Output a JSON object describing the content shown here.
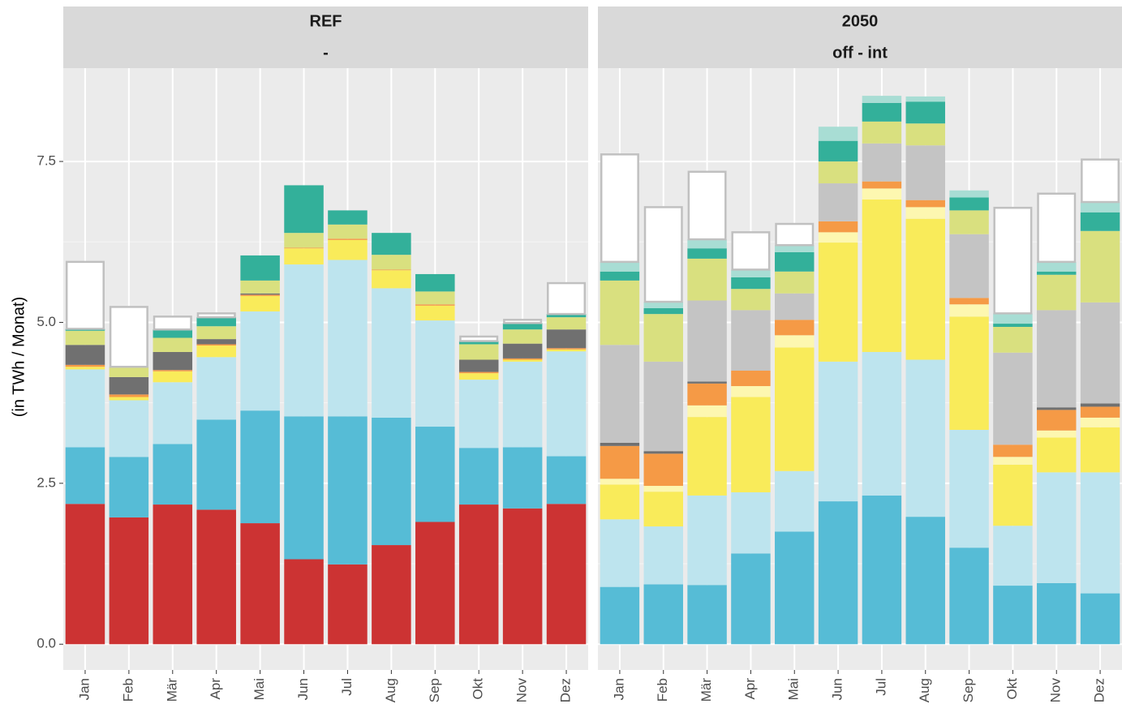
{
  "chart_data": [
    {
      "type": "bar",
      "stacked": true,
      "title": "REF",
      "subtitle": "-",
      "ylabel": "(in TWh / Monat)",
      "categories": [
        "Jan",
        "Feb",
        "Mär",
        "Apr",
        "Mai",
        "Jun",
        "Jul",
        "Aug",
        "Sep",
        "Okt",
        "Nov",
        "Dez"
      ],
      "ylim": [
        -0.4,
        8.95
      ],
      "yticks": [
        {
          "value": 0,
          "label": "0.0"
        },
        2.5,
        {
          "value": 5,
          "label": "5.0"
        },
        7.5
      ],
      "grid": true,
      "series": [
        {
          "color": "#cc3333",
          "values": [
            2.18,
            1.97,
            2.17,
            2.09,
            1.88,
            1.32,
            1.24,
            1.54,
            1.9,
            2.17,
            2.11,
            2.18
          ]
        },
        {
          "color": "#56bcd6",
          "values": [
            0.88,
            0.94,
            0.94,
            1.4,
            1.75,
            2.22,
            2.3,
            1.98,
            1.48,
            0.88,
            0.95,
            0.74
          ]
        },
        {
          "color": "#bde4ee",
          "values": [
            1.21,
            0.88,
            0.96,
            0.97,
            1.54,
            2.36,
            2.43,
            2.01,
            1.65,
            1.06,
            1.33,
            1.63
          ]
        },
        {
          "color": "#f9eb5a",
          "values": [
            0.04,
            0.05,
            0.17,
            0.18,
            0.24,
            0.25,
            0.31,
            0.28,
            0.23,
            0.1,
            0.03,
            0.03
          ]
        },
        {
          "color": "#f59a46",
          "values": [
            0.03,
            0.04,
            0.02,
            0.02,
            0.02,
            0.01,
            0.02,
            0.01,
            0.02,
            0.02,
            0.02,
            0.02
          ]
        },
        {
          "color": "#707070",
          "values": [
            0.31,
            0.27,
            0.28,
            0.08,
            0.02,
            0,
            0,
            0,
            0,
            0.19,
            0.23,
            0.29
          ]
        },
        {
          "color": "#d9e07f",
          "values": [
            0.22,
            0.16,
            0.22,
            0.2,
            0.2,
            0.23,
            0.22,
            0.23,
            0.2,
            0.24,
            0.22,
            0.19
          ]
        },
        {
          "color": "#33b09a",
          "values": [
            0.03,
            0,
            0.13,
            0.14,
            0.39,
            0.74,
            0.22,
            0.34,
            0.27,
            0.05,
            0.1,
            0.05
          ]
        },
        {
          "color": "#ffffff",
          "stroke": "#c0c0c0",
          "values": [
            1.04,
            0.93,
            0.2,
            0.06,
            0,
            0,
            0,
            0,
            0,
            0.07,
            0.05,
            0.48
          ]
        }
      ]
    },
    {
      "type": "bar",
      "stacked": true,
      "title": "2050",
      "subtitle": "off - int",
      "categories": [
        "Jan",
        "Feb",
        "Mär",
        "Apr",
        "Mai",
        "Jun",
        "Jul",
        "Aug",
        "Sep",
        "Okt",
        "Nov",
        "Dez"
      ],
      "ylim": [
        -0.4,
        8.95
      ],
      "yticks": [
        {
          "value": 0,
          "label": "0.0"
        },
        2.5,
        {
          "value": 5,
          "label": "5.0"
        },
        7.5
      ],
      "grid": true,
      "series": [
        {
          "color": "#56bcd6",
          "values": [
            0.89,
            0.93,
            0.92,
            1.41,
            1.75,
            2.22,
            2.31,
            1.98,
            1.5,
            0.91,
            0.95,
            0.79
          ]
        },
        {
          "color": "#bde4ee",
          "values": [
            1.05,
            0.9,
            1.39,
            0.95,
            0.94,
            2.17,
            2.23,
            2.44,
            1.83,
            0.93,
            1.72,
            1.88
          ]
        },
        {
          "color": "#f9eb5a",
          "values": [
            0.54,
            0.54,
            1.22,
            1.48,
            1.92,
            1.85,
            2.37,
            2.19,
            1.76,
            0.95,
            0.54,
            0.7
          ]
        },
        {
          "color": "#fdf7b0",
          "values": [
            0.09,
            0.09,
            0.18,
            0.17,
            0.19,
            0.16,
            0.17,
            0.18,
            0.19,
            0.12,
            0.11,
            0.15
          ]
        },
        {
          "color": "#f59a46",
          "values": [
            0.51,
            0.5,
            0.34,
            0.24,
            0.24,
            0.17,
            0.11,
            0.11,
            0.1,
            0.19,
            0.32,
            0.17
          ]
        },
        {
          "color": "#707070",
          "values": [
            0.05,
            0.04,
            0.03,
            0,
            0,
            0,
            0,
            0,
            0,
            0,
            0.04,
            0.05
          ]
        },
        {
          "color": "#c4c4c4",
          "values": [
            1.52,
            1.39,
            1.26,
            0.94,
            0.41,
            0.59,
            0.59,
            0.85,
            0.99,
            1.43,
            1.51,
            1.57
          ]
        },
        {
          "color": "#d9e07f",
          "values": [
            1.0,
            0.74,
            0.65,
            0.33,
            0.34,
            0.34,
            0.34,
            0.34,
            0.37,
            0.4,
            0.55,
            1.11
          ]
        },
        {
          "color": "#33b09a",
          "values": [
            0.14,
            0.09,
            0.16,
            0.18,
            0.3,
            0.32,
            0.29,
            0.34,
            0.2,
            0.05,
            0.05,
            0.29
          ]
        },
        {
          "color": "#a8ddd4",
          "values": [
            0.15,
            0.1,
            0.14,
            0.12,
            0.11,
            0.22,
            0.11,
            0.08,
            0.11,
            0.16,
            0.15,
            0.16
          ]
        },
        {
          "color": "#ffffff",
          "stroke": "#c0c0c0",
          "values": [
            1.67,
            1.47,
            1.05,
            0.58,
            0.33,
            0,
            0,
            0,
            0,
            1.64,
            1.06,
            0.66
          ]
        }
      ]
    }
  ]
}
